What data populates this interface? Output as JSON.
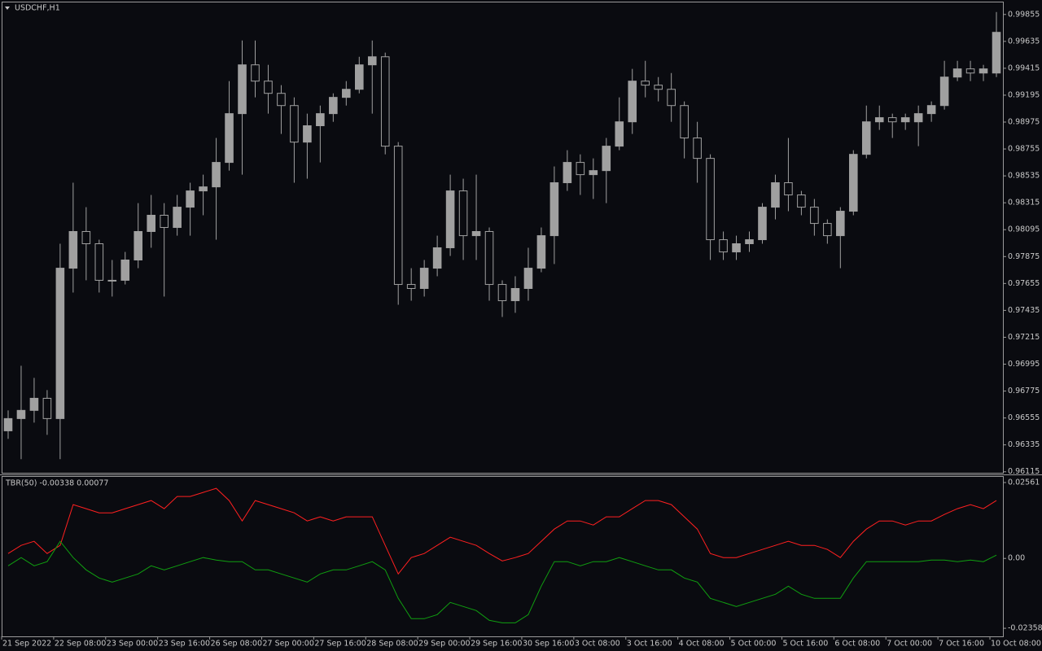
{
  "chart_data": [
    {
      "type": "candlestick",
      "title": "USDCHF,H1",
      "color": "#a0a0a0",
      "xlim": [
        0,
        77
      ],
      "xticks": [
        {
          "value": 0,
          "label": "21 Sep 2022"
        },
        {
          "value": 4,
          "label": "22 Sep 08:00"
        },
        {
          "value": 8,
          "label": "23 Sep 00:00"
        },
        {
          "value": 12,
          "label": "23 Sep 16:00"
        },
        {
          "value": 16,
          "label": "26 Sep 08:00"
        },
        {
          "value": 20,
          "label": "27 Sep 00:00"
        },
        {
          "value": 24,
          "label": "27 Sep 16:00"
        },
        {
          "value": 28,
          "label": "28 Sep 08:00"
        },
        {
          "value": 32,
          "label": "29 Sep 00:00"
        },
        {
          "value": 36,
          "label": "29 Sep 16:00"
        },
        {
          "value": 40,
          "label": "30 Sep 16:00"
        },
        {
          "value": 44,
          "label": "3 Oct 08:00"
        },
        {
          "value": 48,
          "label": "3 Oct 16:00"
        },
        {
          "value": 52,
          "label": "4 Oct 08:00"
        },
        {
          "value": 56,
          "label": "5 Oct 00:00"
        },
        {
          "value": 60,
          "label": "5 Oct 16:00"
        },
        {
          "value": 64,
          "label": "6 Oct 08:00"
        },
        {
          "value": 68,
          "label": "7 Oct 00:00"
        },
        {
          "value": 72,
          "label": "7 Oct 16:00"
        },
        {
          "value": 76,
          "label": "10 Oct 08:00"
        }
      ],
      "ylim": [
        0.961,
        0.9996
      ],
      "yticks": [
        0.99855,
        0.99635,
        0.99415,
        0.99195,
        0.98975,
        0.98755,
        0.98535,
        0.98315,
        0.98095,
        0.97875,
        0.97655,
        0.97435,
        0.97215,
        0.96995,
        0.96775,
        0.96555,
        0.96335,
        0.96115
      ],
      "open": [
        0.9645,
        0.9655,
        0.96617,
        0.96716,
        0.9655,
        0.9778,
        0.9808,
        0.9798,
        0.97681,
        0.97681,
        0.97847,
        0.9808,
        0.98213,
        0.98113,
        0.98279,
        0.98412,
        0.98445,
        0.98645,
        0.99044,
        0.99443,
        0.9931,
        0.9921,
        0.9911,
        0.98811,
        0.98945,
        0.99044,
        0.99177,
        0.99243,
        0.99443,
        0.99509,
        0.98778,
        0.97647,
        0.97614,
        0.9778,
        0.97947,
        0.98412,
        0.98046,
        0.9808,
        0.97647,
        0.97514,
        0.97614,
        0.9778,
        0.98046,
        0.98479,
        0.98645,
        0.98545,
        0.98578,
        0.98778,
        0.98977,
        0.9931,
        0.99277,
        0.99243,
        0.9911,
        0.98845,
        0.98678,
        0.98013,
        0.97913,
        0.9798,
        0.98013,
        0.98279,
        0.98479,
        0.98379,
        0.98279,
        0.98146,
        0.98046,
        0.98246,
        0.98711,
        0.98977,
        0.99011,
        0.98977,
        0.98977,
        0.99044,
        0.9911,
        0.99343,
        0.9941,
        0.99376,
        0.99376
      ],
      "high": [
        0.96617,
        0.96982,
        0.96883,
        0.96783,
        0.9798,
        0.98479,
        0.98279,
        0.98013,
        0.97847,
        0.97913,
        0.98312,
        0.98379,
        0.98312,
        0.98379,
        0.98479,
        0.98545,
        0.98845,
        0.9931,
        0.99642,
        0.99642,
        0.99443,
        0.99277,
        0.99177,
        0.99044,
        0.9911,
        0.9921,
        0.9931,
        0.99509,
        0.99642,
        0.99543,
        0.98811,
        0.9778,
        0.97847,
        0.98046,
        0.98545,
        0.98512,
        0.98545,
        0.98113,
        0.97681,
        0.97714,
        0.97947,
        0.98113,
        0.98612,
        0.98745,
        0.98711,
        0.98678,
        0.98845,
        0.99177,
        0.9941,
        0.99476,
        0.99343,
        0.99376,
        0.99144,
        0.98977,
        0.98711,
        0.9808,
        0.98046,
        0.9808,
        0.98312,
        0.98545,
        0.98845,
        0.98412,
        0.98346,
        0.98179,
        0.98279,
        0.98745,
        0.9911,
        0.9911,
        0.99044,
        0.99044,
        0.9911,
        0.99144,
        0.99476,
        0.99476,
        0.99476,
        0.99443,
        0.99875
      ],
      "low": [
        0.96384,
        0.96218,
        0.96517,
        0.96417,
        0.96218,
        0.97581,
        0.97681,
        0.97581,
        0.97548,
        0.97647,
        0.9778,
        0.97947,
        0.97548,
        0.98046,
        0.98046,
        0.98213,
        0.98013,
        0.98578,
        0.98545,
        0.99177,
        0.99044,
        0.98878,
        0.98479,
        0.98512,
        0.98645,
        0.98977,
        0.9911,
        0.9921,
        0.99044,
        0.98711,
        0.97481,
        0.97514,
        0.97548,
        0.97714,
        0.9788,
        0.97847,
        0.97847,
        0.97514,
        0.97381,
        0.97415,
        0.97514,
        0.97747,
        0.97814,
        0.98412,
        0.98379,
        0.98346,
        0.98312,
        0.98745,
        0.98878,
        0.99177,
        0.99144,
        0.98977,
        0.98678,
        0.98479,
        0.97847,
        0.97847,
        0.97847,
        0.97913,
        0.9798,
        0.98179,
        0.98246,
        0.98213,
        0.98046,
        0.9798,
        0.9778,
        0.98213,
        0.98678,
        0.98911,
        0.98845,
        0.98911,
        0.98778,
        0.98977,
        0.99077,
        0.9931,
        0.9931,
        0.9931,
        0.99343
      ],
      "close": [
        0.9655,
        0.96617,
        0.96716,
        0.9655,
        0.9778,
        0.9808,
        0.9798,
        0.97681,
        0.97681,
        0.97847,
        0.9808,
        0.98213,
        0.98113,
        0.98279,
        0.98412,
        0.98445,
        0.98645,
        0.99044,
        0.99443,
        0.9931,
        0.9921,
        0.9911,
        0.98811,
        0.98945,
        0.99044,
        0.99177,
        0.99243,
        0.99443,
        0.99509,
        0.98778,
        0.97647,
        0.97614,
        0.9778,
        0.97947,
        0.98412,
        0.98046,
        0.9808,
        0.97647,
        0.97514,
        0.97614,
        0.9778,
        0.98046,
        0.98479,
        0.98645,
        0.98545,
        0.98578,
        0.98778,
        0.98977,
        0.9931,
        0.99277,
        0.99243,
        0.9911,
        0.98845,
        0.98678,
        0.98013,
        0.97913,
        0.9798,
        0.98013,
        0.98279,
        0.98479,
        0.98379,
        0.98279,
        0.98146,
        0.98046,
        0.98246,
        0.98711,
        0.98977,
        0.99011,
        0.98977,
        0.99011,
        0.99044,
        0.9911,
        0.99343,
        0.9941,
        0.99376,
        0.9941,
        0.99709
      ]
    },
    {
      "type": "line",
      "title": "TBR(50) -0.00338 0.00077",
      "xlim": [
        0,
        77
      ],
      "ylim": [
        -0.0263,
        0.0278
      ],
      "yticks": [
        0.02561,
        {
          "value": 0,
          "label": "0.00"
        },
        -0.02358
      ],
      "series": [
        {
          "color": "#ff2020",
          "values": [
            0.00165,
            0.0044,
            0.00578,
            0.00165,
            0.0044,
            0.01815,
            0.01678,
            0.0154,
            0.0154,
            0.01678,
            0.01815,
            0.01953,
            0.01678,
            0.0209,
            0.0209,
            0.02228,
            0.02365,
            0.01953,
            0.01265,
            0.01953,
            0.01815,
            0.01678,
            0.0154,
            0.01265,
            0.01403,
            0.01265,
            0.01403,
            0.01403,
            0.01403,
            0.0044,
            -0.00523,
            0.00028,
            0.00165,
            0.0044,
            0.00715,
            0.00578,
            0.0044,
            0.00165,
            -0.00083,
            0.00028,
            0.00165,
            0.00578,
            0.0099,
            0.01265,
            0.01265,
            0.01128,
            0.01403,
            0.01403,
            0.01678,
            0.01953,
            0.01953,
            0.01815,
            0.01403,
            0.0099,
            0.00165,
            0.00028,
            0.00028,
            0.00165,
            0.00303,
            0.0044,
            0.00578,
            0.0044,
            0.0044,
            0.00303,
            0.00028,
            0.00578,
            0.0099,
            0.01265,
            0.01265,
            0.01128,
            0.01265,
            0.01265,
            0.01485,
            0.01678,
            0.01815,
            0.01678,
            0.01953
          ]
        },
        {
          "color": "#10a010",
          "values": [
            -0.00248,
            0.00028,
            -0.00248,
            -0.0011,
            0.00578,
            0.00028,
            -0.00385,
            -0.0066,
            -0.00798,
            -0.0066,
            -0.00523,
            -0.00248,
            -0.00385,
            -0.00248,
            -0.0011,
            0.00028,
            -0.00055,
            -0.0011,
            -0.0011,
            -0.00385,
            -0.00385,
            -0.00523,
            -0.0066,
            -0.00798,
            -0.00523,
            -0.00385,
            -0.00385,
            -0.00248,
            -0.0011,
            -0.00385,
            -0.01348,
            -0.02035,
            -0.02035,
            -0.01898,
            -0.01485,
            -0.01623,
            -0.0176,
            -0.0209,
            -0.02173,
            -0.02173,
            -0.01898,
            -0.00935,
            -0.0011,
            -0.0011,
            -0.00248,
            -0.0011,
            -0.0011,
            0.00028,
            -0.0011,
            -0.00248,
            -0.00385,
            -0.00385,
            -0.0066,
            -0.00798,
            -0.01348,
            -0.01485,
            -0.01623,
            -0.01485,
            -0.01348,
            -0.0121,
            -0.00935,
            -0.0121,
            -0.01348,
            -0.01348,
            -0.01348,
            -0.0066,
            -0.0011,
            -0.0011,
            -0.0011,
            -0.0011,
            -0.0011,
            -0.00055,
            -0.00055,
            -0.0011,
            -0.00055,
            -0.0011,
            0.0011
          ]
        }
      ]
    }
  ]
}
